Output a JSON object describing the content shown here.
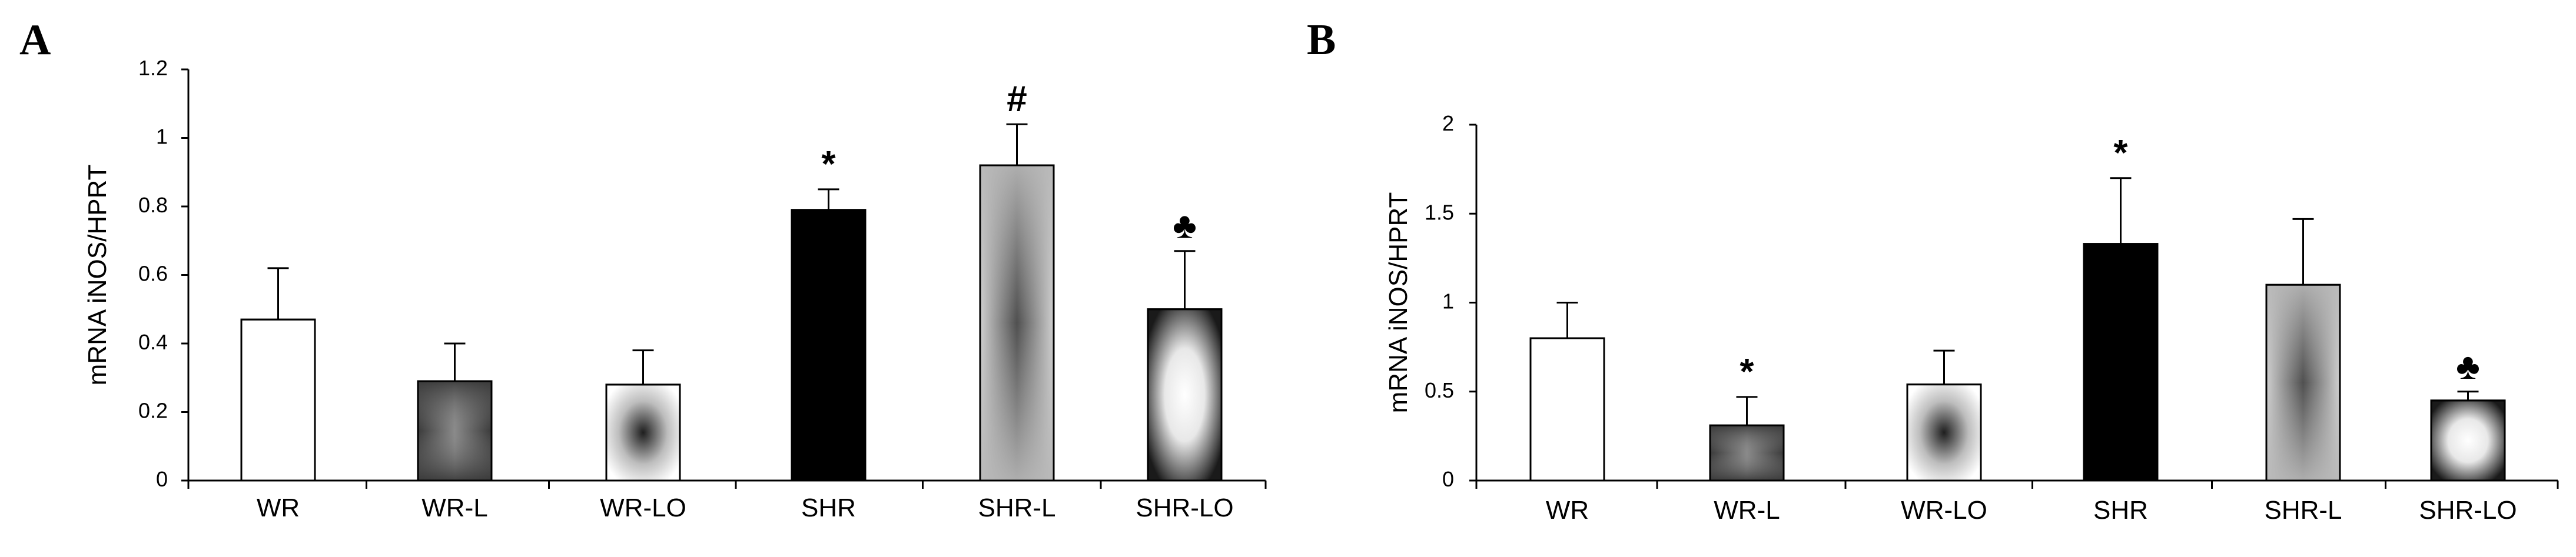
{
  "chart_data": [
    {
      "panel": "A",
      "type": "bar",
      "ylabel": "mRNA iNOS/HPRT",
      "xlabel": "",
      "ylim": [
        0,
        1.2
      ],
      "yticks": [
        0,
        0.2,
        0.4,
        0.6,
        0.8,
        1,
        1.2
      ],
      "ytick_labels": [
        "0",
        "0.2",
        "0.4",
        "0.6",
        "0.8",
        "1",
        "1.2"
      ],
      "grid": false,
      "categories": [
        "WR",
        "WR-L",
        "WR-LO",
        "SHR",
        "SHR-L",
        "SHR-LO"
      ],
      "values": [
        0.47,
        0.29,
        0.28,
        0.79,
        0.92,
        0.5
      ],
      "errors": [
        0.15,
        0.11,
        0.1,
        0.06,
        0.12,
        0.17
      ],
      "annotations": [
        "",
        "",
        "",
        "*",
        "#",
        "♣"
      ],
      "fills": [
        "white",
        "dark-cross",
        "light-center-dark",
        "black",
        "gray-hourglass",
        "dark-center-light"
      ]
    },
    {
      "panel": "B",
      "type": "bar",
      "ylabel": "mRNA iNOS/HPRT",
      "xlabel": "",
      "ylim": [
        0,
        2
      ],
      "yticks": [
        0,
        0.5,
        1,
        1.5,
        2
      ],
      "ytick_labels": [
        "0",
        "0.5",
        "1",
        "1.5",
        "2"
      ],
      "grid": false,
      "categories": [
        "WR",
        "WR-L",
        "WR-LO",
        "SHR",
        "SHR-L",
        "SHR-LO"
      ],
      "values": [
        0.8,
        0.31,
        0.54,
        1.33,
        1.1,
        0.45
      ],
      "errors": [
        0.2,
        0.16,
        0.19,
        0.37,
        0.37,
        0.05
      ],
      "annotations": [
        "",
        "*",
        "",
        "*",
        "",
        "♣"
      ],
      "fills": [
        "white",
        "dark-cross",
        "light-center-dark",
        "black",
        "gray-hourglass",
        "dark-center-light"
      ]
    }
  ]
}
